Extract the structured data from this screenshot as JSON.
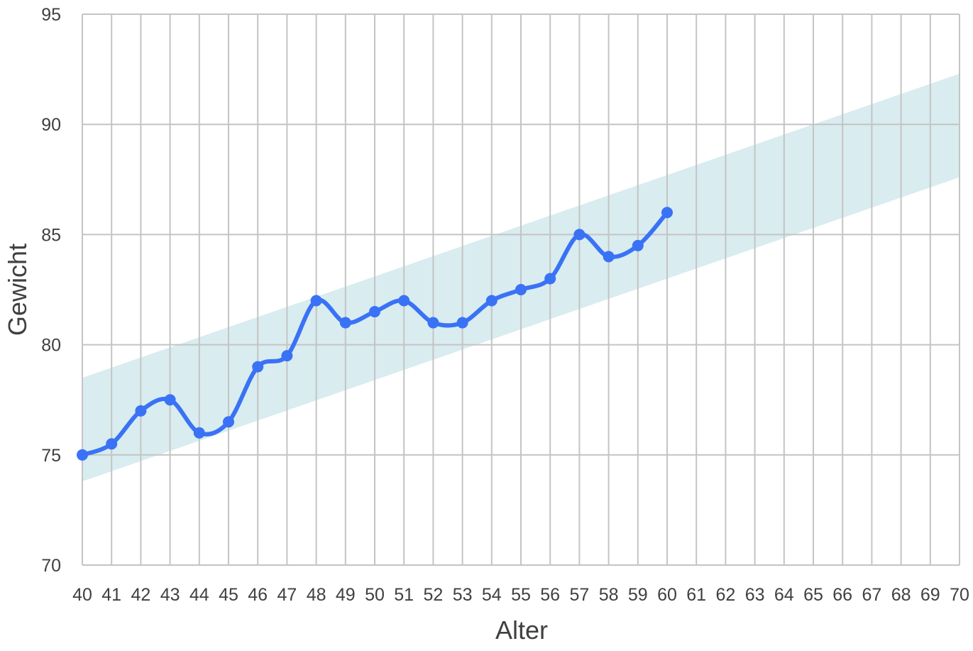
{
  "chart_data": {
    "type": "line",
    "title": "",
    "xlabel": "Alter",
    "ylabel": "Gewicht",
    "xlim": [
      40,
      70
    ],
    "ylim": [
      70,
      95
    ],
    "x_ticks": [
      40,
      41,
      42,
      43,
      44,
      45,
      46,
      47,
      48,
      49,
      50,
      51,
      52,
      53,
      54,
      55,
      56,
      57,
      58,
      59,
      60,
      61,
      62,
      63,
      64,
      65,
      66,
      67,
      68,
      69,
      70
    ],
    "y_ticks": [
      70,
      75,
      80,
      85,
      90,
      95
    ],
    "grid": true,
    "legend": "none",
    "series": [
      {
        "x": [
          40,
          41,
          42,
          43,
          44,
          45,
          46,
          47,
          48,
          49,
          50,
          51,
          52,
          53,
          54,
          55,
          56,
          57,
          58,
          59,
          60
        ],
        "values": [
          75,
          75.5,
          77,
          77.5,
          76,
          76.5,
          79,
          79.5,
          82,
          81,
          81.5,
          82,
          81,
          81,
          82,
          82.5,
          83,
          85,
          84,
          84.5,
          86
        ],
        "color": "#3a72f6",
        "smooth": true,
        "markers": true
      }
    ],
    "band": {
      "x": [
        40,
        70
      ],
      "lower": [
        73.8,
        87.6
      ],
      "upper": [
        78.5,
        92.3
      ],
      "color": "#d9ecf0"
    }
  }
}
